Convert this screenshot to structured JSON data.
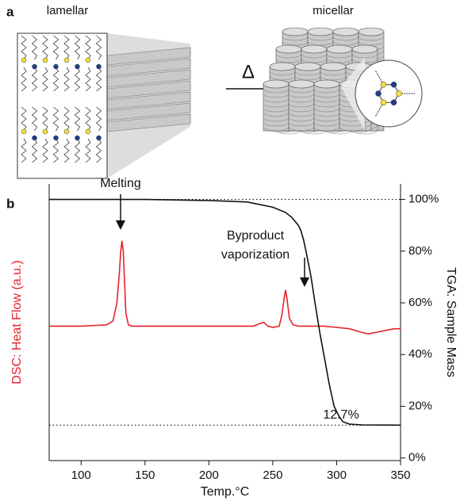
{
  "panel_a": {
    "label": "a",
    "left_title": "lamellar",
    "right_title": "micellar",
    "arrow_label": "Δ"
  },
  "chart_data": {
    "type": "line",
    "panel_label": "b",
    "xlabel": "Temp.°C",
    "ylabel": "DSC: Heat Flow (a.u.)",
    "y2label": "TGA: Sample Mass",
    "xlim": [
      75,
      350
    ],
    "xticks": [
      100,
      150,
      200,
      250,
      300,
      350
    ],
    "ylim": [
      -1,
      106
    ],
    "y2lim": [
      -1,
      106
    ],
    "y2ticks": [
      {
        "value": 0,
        "label": "0%"
      },
      {
        "value": 20,
        "label": "20%"
      },
      {
        "value": 40,
        "label": "40%"
      },
      {
        "value": 60,
        "label": "60%"
      },
      {
        "value": 80,
        "label": "80%"
      },
      {
        "value": 100,
        "label": "100%"
      }
    ],
    "series": [
      {
        "color": "#e8212b",
        "axis": "y",
        "x": [
          75,
          100,
          120,
          125,
          128,
          130,
          131,
          132,
          133,
          134,
          135,
          137,
          140,
          200,
          235,
          240,
          243,
          246,
          250,
          255,
          257,
          259,
          260,
          261,
          263,
          266,
          270,
          290,
          300,
          310,
          320,
          325,
          330,
          340,
          345,
          350
        ],
        "values": [
          51,
          51,
          51.5,
          53,
          60,
          72,
          80,
          84,
          80,
          68,
          56,
          51.5,
          51,
          51,
          51,
          52,
          52.5,
          51,
          50.5,
          51,
          55,
          62,
          65,
          62,
          54,
          51.5,
          51,
          51,
          50.5,
          50,
          48.5,
          48,
          48.5,
          49.5,
          50,
          50
        ]
      },
      {
        "color": "#111111",
        "axis": "y2",
        "x": [
          75,
          150,
          200,
          230,
          250,
          260,
          265,
          270,
          272,
          274,
          276,
          280,
          283,
          287,
          290,
          294,
          298,
          302,
          305,
          310,
          320,
          350
        ],
        "values": [
          100,
          100,
          99.6,
          99,
          97,
          95,
          93,
          90,
          88,
          84.5,
          80,
          70,
          60,
          48,
          40,
          29,
          20,
          16,
          14,
          13.1,
          12.8,
          12.7
        ]
      }
    ],
    "reference_lines": [
      100,
      12.7
    ],
    "annotations": [
      {
        "text": "Melting"
      },
      {
        "text": "Byproduct"
      },
      {
        "text": "vaporization"
      },
      {
        "text": "12.7%"
      }
    ]
  }
}
